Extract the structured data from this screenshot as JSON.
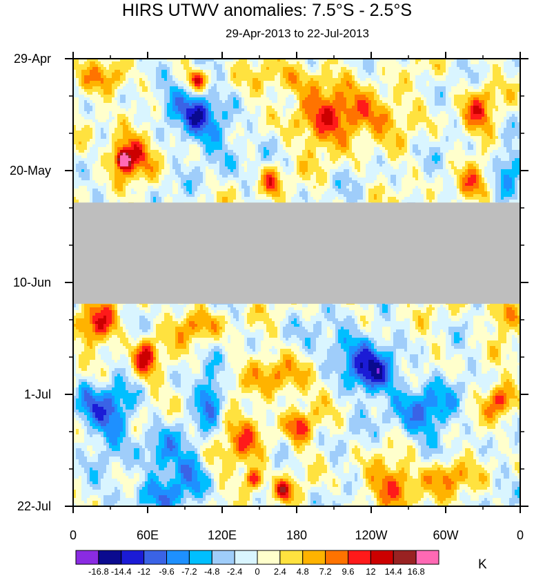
{
  "chart_data": {
    "type": "heatmap",
    "title": "HIRS UTWV anomalies: 7.5°S - 2.5°S",
    "subtitle": "29-Apr-2013 to 22-Jul-2013",
    "x_ticks": [
      "0",
      "60E",
      "120E",
      "180",
      "120W",
      "60W",
      "0"
    ],
    "x_tick_values": [
      0,
      60,
      120,
      180,
      240,
      300,
      360
    ],
    "xlim": [
      0,
      360
    ],
    "y_ticks": [
      "29-Apr",
      "20-May",
      "10-Jun",
      "1-Jul",
      "22-Jul"
    ],
    "y_tick_days": [
      0,
      21,
      42,
      63,
      84
    ],
    "ylim_days": [
      0,
      84
    ],
    "missing_band_days": [
      27,
      46
    ],
    "units": "K",
    "colorbar_levels": [
      "-16.8",
      "-14.4",
      "-12",
      "-9.6",
      "-7.2",
      "-4.8",
      "-2.4",
      "0",
      "2.4",
      "4.8",
      "7.2",
      "9.6",
      "12",
      "14.4",
      "16.8"
    ],
    "colorbar_colors": [
      "#8a2be2",
      "#0a0a8f",
      "#1b1bd6",
      "#3a63e6",
      "#1e90ff",
      "#00bfff",
      "#9fcdfa",
      "#d9f5ff",
      "#ffffcc",
      "#ffe23f",
      "#ffb300",
      "#ff7300",
      "#ff1a1a",
      "#cc0000",
      "#992222",
      "#ff69b4"
    ],
    "missing_color": "#bebebe",
    "hotspots": [
      {
        "lon": 44,
        "day": 18,
        "value": 13,
        "rx": 16,
        "ry": 4
      },
      {
        "lon": 40,
        "day": 19,
        "value": 16,
        "rx": 5,
        "ry": 1.5
      },
      {
        "lon": 100,
        "day": 4,
        "value": 11,
        "rx": 8,
        "ry": 2
      },
      {
        "lon": 98,
        "day": 10,
        "value": -10,
        "rx": 14,
        "ry": 4
      },
      {
        "lon": 78,
        "day": 8,
        "value": -8,
        "rx": 12,
        "ry": 4
      },
      {
        "lon": 30,
        "day": 4,
        "value": 8,
        "rx": 18,
        "ry": 3
      },
      {
        "lon": 180,
        "day": 4,
        "value": 7,
        "rx": 30,
        "ry": 3
      },
      {
        "lon": 205,
        "day": 12,
        "value": 9,
        "rx": 30,
        "ry": 5
      },
      {
        "lon": 240,
        "day": 10,
        "value": 8,
        "rx": 24,
        "ry": 4
      },
      {
        "lon": 325,
        "day": 10,
        "value": 8,
        "rx": 14,
        "ry": 5
      },
      {
        "lon": 160,
        "day": 23,
        "value": 10,
        "rx": 8,
        "ry": 3
      },
      {
        "lon": 322,
        "day": 24,
        "value": 7,
        "rx": 12,
        "ry": 3
      },
      {
        "lon": 120,
        "day": 15,
        "value": -6,
        "rx": 20,
        "ry": 6
      },
      {
        "lon": 350,
        "day": 20,
        "value": -7,
        "rx": 12,
        "ry": 4
      },
      {
        "lon": 20,
        "day": 50,
        "value": 10,
        "rx": 16,
        "ry": 4
      },
      {
        "lon": 58,
        "day": 56,
        "value": 12,
        "rx": 10,
        "ry": 4
      },
      {
        "lon": 100,
        "day": 50,
        "value": 7,
        "rx": 20,
        "ry": 3
      },
      {
        "lon": 345,
        "day": 48,
        "value": 7,
        "rx": 15,
        "ry": 3
      },
      {
        "lon": 240,
        "day": 59,
        "value": -12,
        "rx": 20,
        "ry": 4
      },
      {
        "lon": 220,
        "day": 54,
        "value": -8,
        "rx": 22,
        "ry": 4
      },
      {
        "lon": 110,
        "day": 64,
        "value": -11,
        "rx": 10,
        "ry": 4
      },
      {
        "lon": 170,
        "day": 60,
        "value": 8,
        "rx": 22,
        "ry": 4
      },
      {
        "lon": 30,
        "day": 67,
        "value": -9,
        "rx": 18,
        "ry": 6
      },
      {
        "lon": 10,
        "day": 64,
        "value": -7,
        "rx": 10,
        "ry": 4
      },
      {
        "lon": 345,
        "day": 64,
        "value": 9,
        "rx": 12,
        "ry": 3
      },
      {
        "lon": 182,
        "day": 69,
        "value": 10,
        "rx": 10,
        "ry": 3
      },
      {
        "lon": 280,
        "day": 66,
        "value": -9,
        "rx": 24,
        "ry": 6
      },
      {
        "lon": 140,
        "day": 72,
        "value": 7,
        "rx": 18,
        "ry": 6
      },
      {
        "lon": 70,
        "day": 74,
        "value": -7,
        "rx": 16,
        "ry": 6
      },
      {
        "lon": 95,
        "day": 78,
        "value": -8,
        "rx": 14,
        "ry": 4
      },
      {
        "lon": 145,
        "day": 79,
        "value": 12,
        "rx": 8,
        "ry": 2
      },
      {
        "lon": 170,
        "day": 81,
        "value": 11,
        "rx": 7,
        "ry": 2
      },
      {
        "lon": 260,
        "day": 80,
        "value": 9,
        "rx": 24,
        "ry": 4
      },
      {
        "lon": 300,
        "day": 78,
        "value": 8,
        "rx": 16,
        "ry": 3
      },
      {
        "lon": 60,
        "day": 82,
        "value": -6,
        "rx": 30,
        "ry": 3
      }
    ]
  }
}
